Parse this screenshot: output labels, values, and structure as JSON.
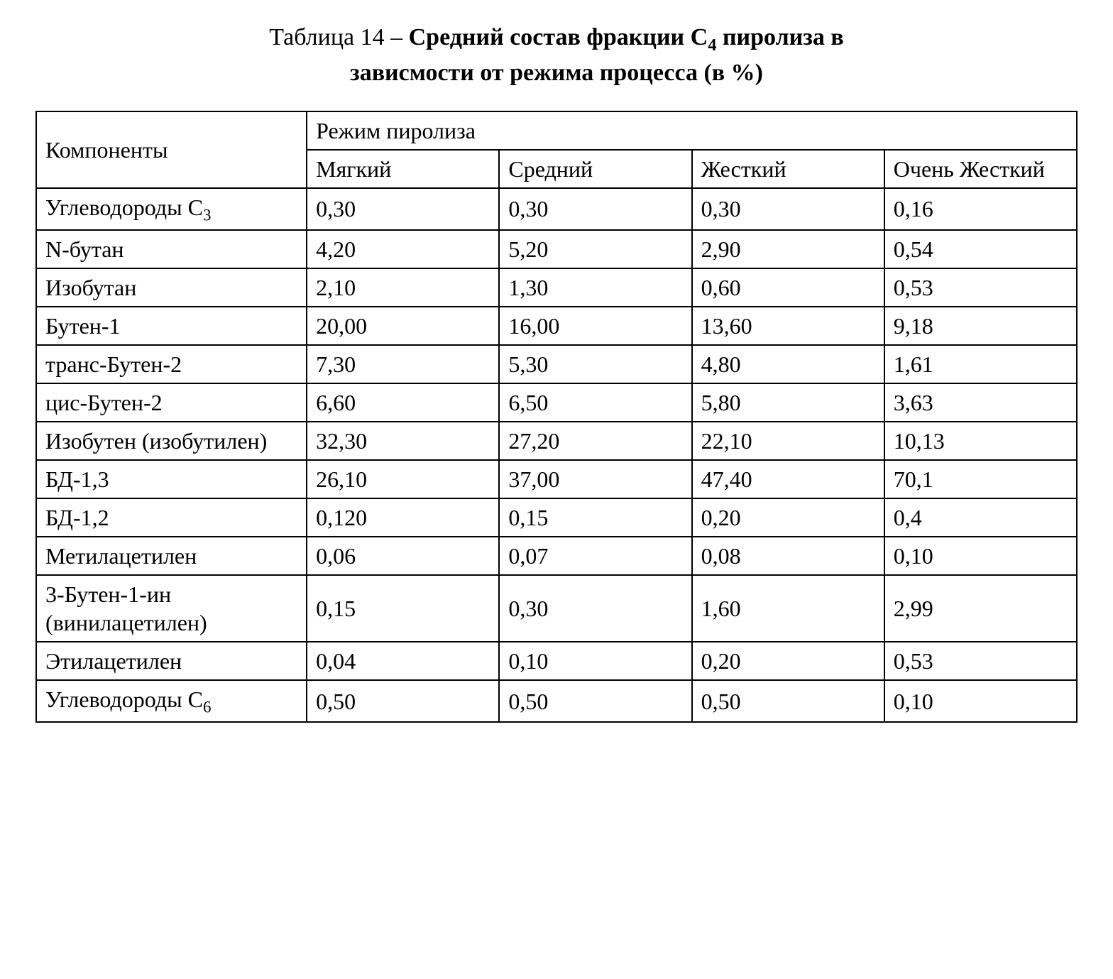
{
  "caption": {
    "prefix": "Таблица 14 – ",
    "bold_line1_before_sub": "Средний состав фракции C",
    "bold_sub": "4",
    "bold_line1_after_sub": " пиролиза в",
    "bold_line2": "зависмости от режима процесса (в %)"
  },
  "table": {
    "type": "table",
    "border_color": "#000000",
    "background_color": "#ffffff",
    "font_family": "Times New Roman",
    "cell_fontsize_pt": 24,
    "header": {
      "components_label": "Компоненты",
      "group_label": "Режим пиролиза",
      "modes": [
        "Мягкий",
        "Средний",
        "Жесткий",
        "Очень Жесткий"
      ]
    },
    "column_widths_pct": [
      26,
      18.5,
      18.5,
      18.5,
      18.5
    ],
    "rows": [
      {
        "name_html": "Углеводороды C<sub>3</sub>",
        "values": [
          "0,30",
          "0,30",
          "0,30",
          "0,16"
        ]
      },
      {
        "name_html": "N-бутан",
        "values": [
          "4,20",
          "5,20",
          "2,90",
          "0,54"
        ]
      },
      {
        "name_html": "Изобутан",
        "values": [
          "2,10",
          "1,30",
          "0,60",
          "0,53"
        ]
      },
      {
        "name_html": "Бутен-1",
        "values": [
          "20,00",
          "16,00",
          "13,60",
          "9,18"
        ]
      },
      {
        "name_html": "транс-Бутен-2",
        "values": [
          "7,30",
          "5,30",
          "4,80",
          "1,61"
        ]
      },
      {
        "name_html": "цис-Бутен-2",
        "values": [
          "6,60",
          "6,50",
          "5,80",
          "3,63"
        ]
      },
      {
        "name_html": "Изобутен (изобутилен)",
        "values": [
          "32,30",
          "27,20",
          "22,10",
          "10,13"
        ]
      },
      {
        "name_html": "БД-1,3",
        "values": [
          "26,10",
          "37,00",
          "47,40",
          "70,1"
        ]
      },
      {
        "name_html": "БД-1,2",
        "values": [
          "0,120",
          "0,15",
          "0,20",
          "0,4"
        ]
      },
      {
        "name_html": "Метилацетилен",
        "values": [
          "0,06",
          "0,07",
          "0,08",
          "0,10"
        ]
      },
      {
        "name_html": "3-Бутен-1-ин (винилацетилен)",
        "values": [
          "0,15",
          "0,30",
          "1,60",
          "2,99"
        ]
      },
      {
        "name_html": "Этилацетилен",
        "values": [
          "0,04",
          "0,10",
          "0,20",
          "0,53"
        ]
      },
      {
        "name_html": "Углеводороды C<sub>6</sub>",
        "values": [
          "0,50",
          "0,50",
          "0,50",
          "0,10"
        ]
      }
    ]
  }
}
